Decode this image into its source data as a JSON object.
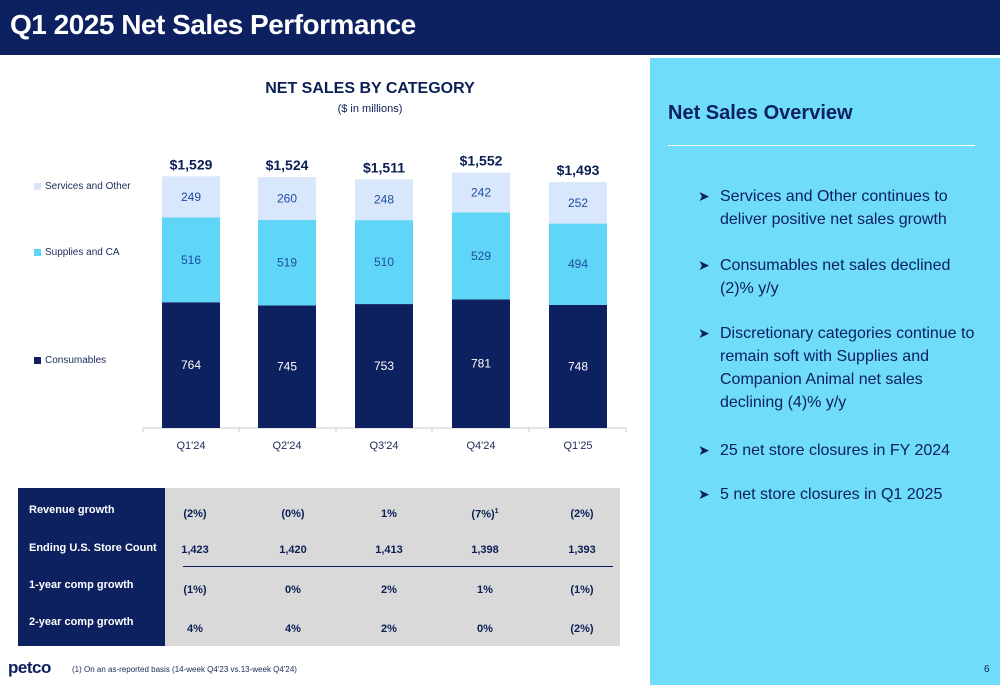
{
  "header": {
    "title": "Q1 2025 Net Sales Performance"
  },
  "chart_data": {
    "type": "bar",
    "stacked": true,
    "title": "NET SALES BY CATEGORY",
    "subtitle": "($ in millions)",
    "categories": [
      "Q1'24",
      "Q2'24",
      "Q3'24",
      "Q4'24",
      "Q1'25"
    ],
    "totals": [
      "$1,529",
      "$1,524",
      "$1,511",
      "$1,552",
      "$1,493"
    ],
    "series": [
      {
        "name": "Consumables",
        "values": [
          764,
          745,
          753,
          781,
          748
        ],
        "color": "#0d2060",
        "label_color": "#ffffff"
      },
      {
        "name": "Supplies and CA",
        "values": [
          516,
          519,
          510,
          529,
          494
        ],
        "color": "#5fd6f7",
        "label_color": "#1f4da1"
      },
      {
        "name": "Services and Other",
        "values": [
          249,
          260,
          248,
          242,
          252
        ],
        "color": "#d8e7fb",
        "label_color": "#1f4da1"
      }
    ],
    "ylim": [
      0,
      1600
    ],
    "legend_position": "left",
    "grid": false
  },
  "metrics": {
    "rows": [
      {
        "label": "Revenue growth",
        "values": [
          "(2%)",
          "(0%)",
          "1%",
          "(7%)",
          "(2%)"
        ],
        "footnote_marks": [
          "",
          "",
          "",
          "1",
          ""
        ]
      },
      {
        "label": "Ending U.S. Store Count",
        "values": [
          "1,423",
          "1,420",
          "1,413",
          "1,398",
          "1,393"
        ]
      },
      {
        "label": "1-year comp growth",
        "values": [
          "(1%)",
          "0%",
          "2%",
          "1%",
          "(1%)"
        ]
      },
      {
        "label": "2-year comp growth",
        "values": [
          "4%",
          "4%",
          "2%",
          "0%",
          "(2%)"
        ]
      }
    ]
  },
  "footer": {
    "logo": "petco",
    "footnote": "(1)    On an as-reported basis (14-week Q4'23 vs.13-week  Q4'24)",
    "page_number": "6"
  },
  "overview": {
    "title": "Net Sales Overview",
    "bullet_icon": "arrow-bullet-icon",
    "bullets": [
      "Services and Other continues to deliver positive net sales growth",
      "Consumables net sales declined (2)% y/y",
      "Discretionary categories continue to remain soft with Supplies and Companion Animal net sales declining (4)% y/y",
      "25 net store closures in FY 2024",
      "5 net store closures in Q1 2025"
    ]
  }
}
